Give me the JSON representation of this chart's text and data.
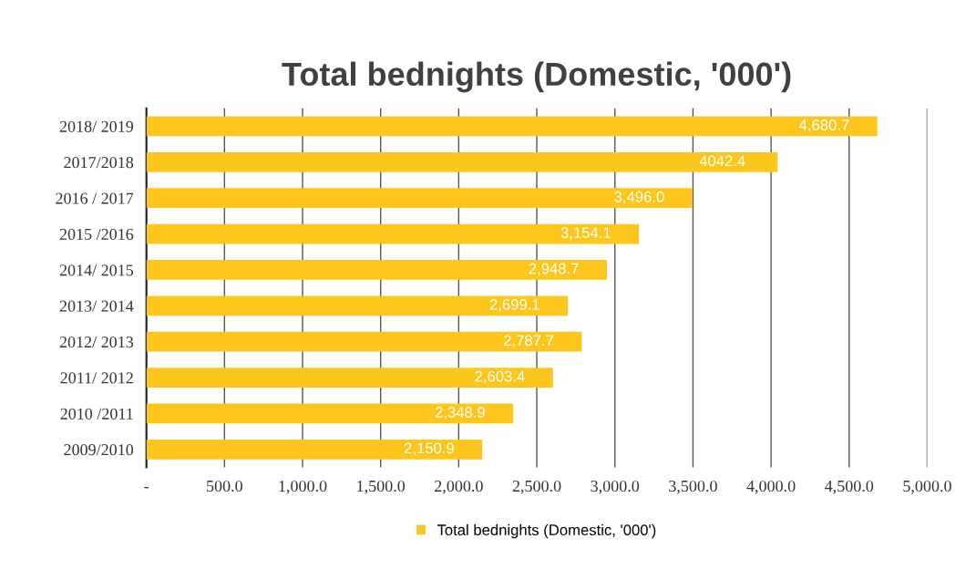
{
  "chart_data": {
    "type": "bar",
    "orientation": "horizontal",
    "title": "Total bednights (Domestic, '000')",
    "categories": [
      "2018/ 2019",
      "2017/2018",
      "2016 / 2017",
      "2015 /2016",
      "2014/ 2015",
      "2013/ 2014",
      "2012/ 2013",
      "2011/ 2012",
      "2010 /2011",
      "2009/2010"
    ],
    "series": [
      {
        "name": "Total bednights (Domestic, '000')",
        "color": "#fdc61c",
        "values": [
          4680.7,
          4042.4,
          3496.0,
          3154.1,
          2948.7,
          2699.1,
          2787.7,
          2603.4,
          2348.9,
          2150.9
        ],
        "value_labels": [
          "4,680.7",
          "4042.4",
          "3,496.0",
          "3,154.1",
          "2,948.7",
          "2,699.1",
          "2,787.7",
          "2,603.4",
          "2,348.9",
          "2,150.9"
        ]
      }
    ],
    "xlim": [
      0,
      5000
    ],
    "xticks": [
      {
        "value": 0,
        "label": "-"
      },
      {
        "value": 500,
        "label": "500.0"
      },
      {
        "value": 1000,
        "label": "1,000.0"
      },
      {
        "value": 1500,
        "label": "1,500.0"
      },
      {
        "value": 2000,
        "label": "2,000.0"
      },
      {
        "value": 2500,
        "label": "2,500.0"
      },
      {
        "value": 3000,
        "label": "3,000.0"
      },
      {
        "value": 3500,
        "label": "3,500.0"
      },
      {
        "value": 4000,
        "label": "4,000.0"
      },
      {
        "value": 4500,
        "label": "4,500.0"
      },
      {
        "value": 5000,
        "label": "5,000.0"
      }
    ],
    "grid": "x",
    "legend": "bottom"
  }
}
